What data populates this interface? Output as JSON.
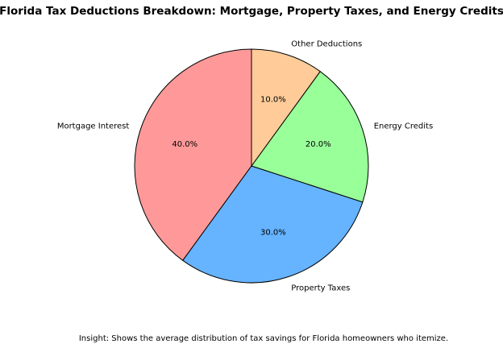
{
  "chart_data": {
    "type": "pie",
    "title": "Florida Tax Deductions Breakdown: Mortgage, Property Taxes, and Energy Credits",
    "categories": [
      "Mortgage Interest",
      "Property Taxes",
      "Energy Credits",
      "Other Deductions"
    ],
    "values": [
      40,
      30,
      20,
      10
    ],
    "value_labels": [
      "40.0%",
      "30.0%",
      "20.0%",
      "10.0%"
    ],
    "colors": [
      "#ff9999",
      "#66b3ff",
      "#99ff99",
      "#ffcc99"
    ],
    "insight": "Insight: Shows the average distribution of tax savings for Florida homeowners who itemize."
  }
}
